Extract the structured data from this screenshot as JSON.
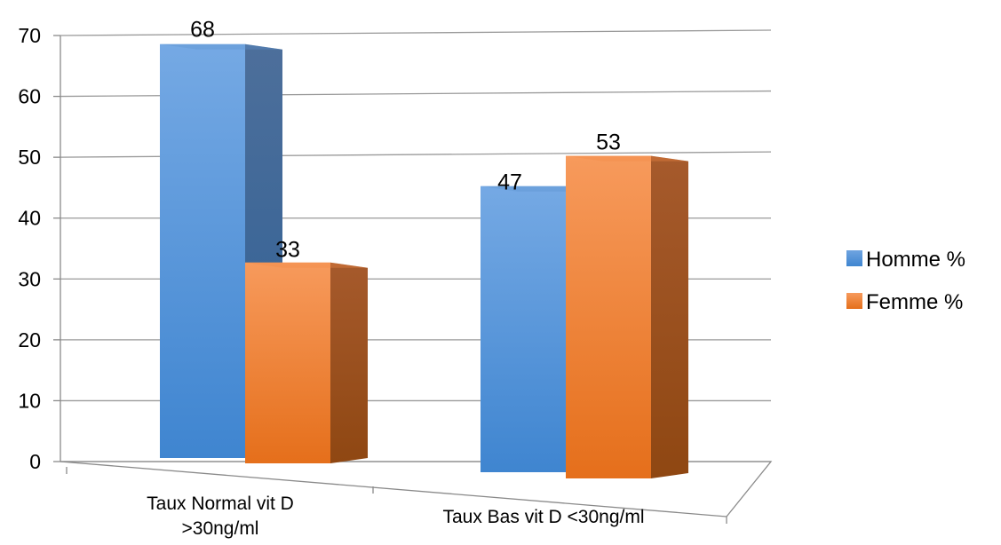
{
  "chart_data": {
    "type": "bar",
    "title": "",
    "xlabel": "",
    "ylabel": "",
    "ylim": [
      0,
      70
    ],
    "yticks": [
      0,
      10,
      20,
      30,
      40,
      50,
      60,
      70
    ],
    "grid": true,
    "style": "3d-clustered-column",
    "legend_position": "right",
    "categories": [
      [
        "Taux Normal vit D",
        ">30ng/ml"
      ],
      [
        "Taux Bas vit D <30ng/ml"
      ]
    ],
    "series": [
      {
        "name": "Homme %",
        "values": [
          68,
          47
        ],
        "color": "#4f8fd6"
      },
      {
        "name": "Femme %",
        "values": [
          33,
          53
        ],
        "color": "#f07f2c"
      }
    ]
  }
}
